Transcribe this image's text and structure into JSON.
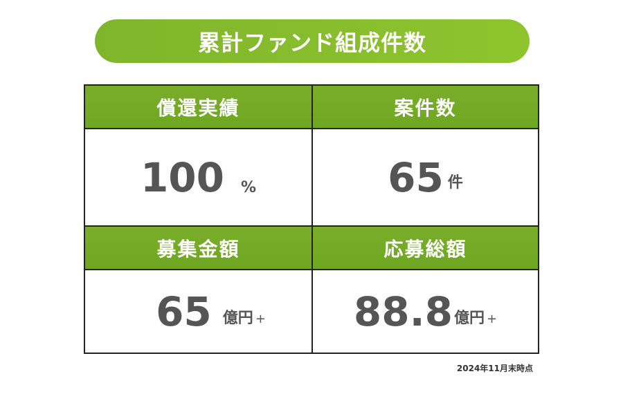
{
  "title": "累計ファンド組成件数",
  "cells": {
    "repayment": {
      "header": "償還実績",
      "value": "100",
      "unit": "%"
    },
    "projects": {
      "header": "案件数",
      "value": "65",
      "unit": "件"
    },
    "raised": {
      "header": "募集金額",
      "value": "65",
      "unit": "億円",
      "suffix": "+"
    },
    "applied": {
      "header": "応募総額",
      "value": "88.8",
      "unit": "億円",
      "suffix": "+"
    }
  },
  "footnote": "2024年11月末時点",
  "colors": {
    "accent": "#7aae2a",
    "pill": "#8cc22e",
    "value_text": "#555555"
  }
}
